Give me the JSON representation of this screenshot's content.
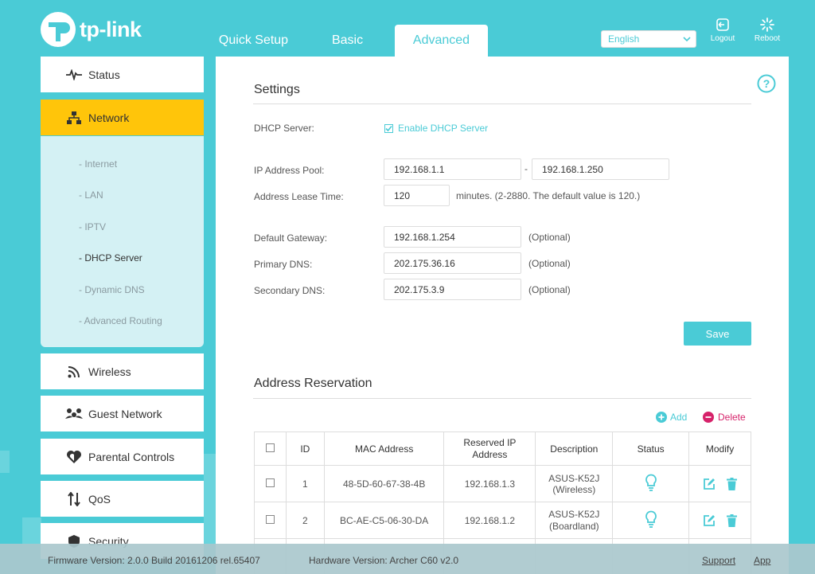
{
  "brand": {
    "logo_text": "tp-link"
  },
  "tabs": [
    {
      "label": "Quick Setup",
      "active": false
    },
    {
      "label": "Basic",
      "active": false
    },
    {
      "label": "Advanced",
      "active": true
    }
  ],
  "header": {
    "language": "English",
    "logout_label": "Logout",
    "reboot_label": "Reboot"
  },
  "sidebar": {
    "items": [
      {
        "label": "Status",
        "icon": "pulse-icon"
      },
      {
        "label": "Network",
        "icon": "network-icon",
        "active": true
      },
      {
        "label": "Wireless",
        "icon": "wifi-icon"
      },
      {
        "label": "Guest Network",
        "icon": "guests-icon"
      },
      {
        "label": "Parental Controls",
        "icon": "heart-icon"
      },
      {
        "label": "QoS",
        "icon": "updown-arrows-icon"
      },
      {
        "label": "Security",
        "icon": "shield-icon"
      }
    ],
    "network_sub": [
      {
        "label": "- Internet"
      },
      {
        "label": "- LAN"
      },
      {
        "label": "- IPTV"
      },
      {
        "label": "- DHCP Server",
        "active": true
      },
      {
        "label": "- Dynamic DNS"
      },
      {
        "label": "- Advanced Routing"
      }
    ]
  },
  "settings": {
    "title": "Settings",
    "dhcp_server_label": "DHCP Server:",
    "enable_label": "Enable DHCP Server",
    "enabled": true,
    "pool_label": "IP Address Pool:",
    "pool_start": "192.168.1.1",
    "pool_dash": "-",
    "pool_end": "192.168.1.250",
    "lease_label": "Address Lease Time:",
    "lease_value": "120",
    "lease_hint": "minutes. (2-2880. The default value is 120.)",
    "gateway_label": "Default Gateway:",
    "gateway_value": "192.168.1.254",
    "primary_dns_label": "Primary DNS:",
    "primary_dns_value": "202.175.36.16",
    "secondary_dns_label": "Secondary DNS:",
    "secondary_dns_value": "202.175.3.9",
    "optional_hint": "(Optional)",
    "save_label": "Save"
  },
  "reservation": {
    "title": "Address Reservation",
    "add_label": "Add",
    "delete_label": "Delete",
    "columns": [
      "ID",
      "MAC Address",
      "Reserved IP Address",
      "Description",
      "Status",
      "Modify"
    ],
    "rows": [
      {
        "id": "1",
        "mac": "48-5D-60-67-38-4B",
        "ip": "192.168.1.3",
        "desc": "ASUS-K52J (Wireless)"
      },
      {
        "id": "2",
        "mac": "BC-AE-C5-06-30-DA",
        "ip": "192.168.1.2",
        "desc": "ASUS-K52J (Boardland)"
      }
    ]
  },
  "footer": {
    "firmware": "Firmware Version: 2.0.0 Build 20161206 rel.65407",
    "hardware": "Hardware Version: Archer C60 v2.0",
    "support": "Support",
    "app": "App"
  },
  "colors": {
    "accent": "#4acbd6",
    "active_nav": "#ffc50a",
    "delete": "#d6226a"
  }
}
